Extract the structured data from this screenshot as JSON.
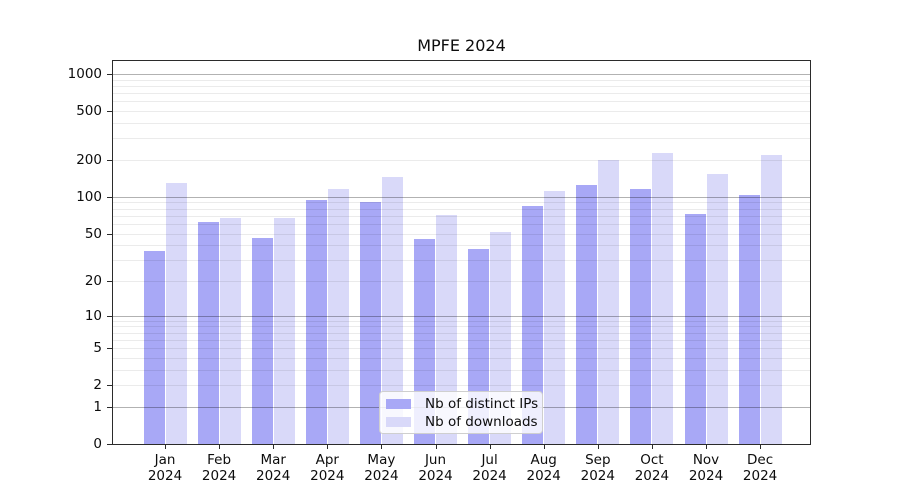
{
  "title": "MPFE 2024",
  "legend": {
    "items": [
      {
        "label": "Nb of distinct IPs",
        "color": "#a8a8f6"
      },
      {
        "label": "Nb of downloads",
        "color": "#d9d9f9"
      }
    ]
  },
  "y_axis": {
    "tick_labels": [
      "1000",
      "500",
      "200",
      "100",
      "50",
      "20",
      "10",
      "5",
      "2",
      "1",
      "0"
    ]
  },
  "chart_data": {
    "type": "bar",
    "title": "MPFE 2024",
    "categories": [
      "Jan 2024",
      "Feb 2024",
      "Mar 2024",
      "Apr 2024",
      "May 2024",
      "Jun 2024",
      "Jul 2024",
      "Aug 2024",
      "Sep 2024",
      "Oct 2024",
      "Nov 2024",
      "Dec 2024"
    ],
    "series": [
      {
        "name": "Nb of distinct IPs",
        "color": "#a8a8f6",
        "values": [
          36,
          62,
          46,
          94,
          91,
          45,
          37,
          84,
          126,
          115,
          72,
          104
        ]
      },
      {
        "name": "Nb of downloads",
        "color": "#d9d9f9",
        "values": [
          130,
          67,
          67,
          116,
          145,
          71,
          51,
          112,
          200,
          230,
          154,
          220
        ]
      }
    ],
    "yscale": "log1p",
    "ylim": [
      0,
      1276
    ],
    "yticks": [
      1000,
      500,
      200,
      100,
      50,
      20,
      10,
      5,
      2,
      1,
      0
    ],
    "major_gridlines": [
      1,
      10,
      100,
      1000
    ],
    "minor_gridlines": [
      2,
      3,
      4,
      5,
      6,
      7,
      8,
      9,
      20,
      30,
      40,
      50,
      60,
      70,
      80,
      90,
      200,
      300,
      400,
      500,
      600,
      700,
      800,
      900
    ],
    "grid": true,
    "legend_position": "lower center"
  }
}
